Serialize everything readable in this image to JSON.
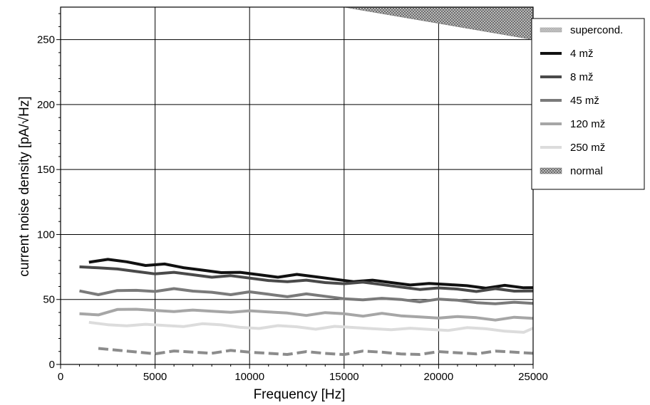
{
  "chart_data": {
    "type": "line",
    "title": "",
    "xlabel": "Frequency [Hz]",
    "ylabel": "current noise density [pA/√Hz]",
    "xlim": [
      0,
      25000
    ],
    "ylim": [
      0,
      275
    ],
    "xticks": [
      0,
      5000,
      10000,
      15000,
      20000,
      25000
    ],
    "yticks": [
      0,
      50,
      100,
      150,
      200,
      250
    ],
    "xtick_labels": [
      "0",
      "5000",
      "10000",
      "15000",
      "20000",
      "25000"
    ],
    "ytick_labels": [
      "0",
      "50",
      "100",
      "150",
      "200",
      "250"
    ],
    "grid": true,
    "legend_position": "top-right",
    "series": [
      {
        "name": "supercond.",
        "style": "hatched-dashed",
        "color": "#8c8c8c",
        "x": [
          2000,
          3000,
          4000,
          5000,
          6000,
          7000,
          8000,
          9000,
          10000,
          11000,
          12000,
          13000,
          14000,
          15000,
          16000,
          17000,
          18000,
          19000,
          20000,
          21000,
          22000,
          23000,
          24000,
          25000
        ],
        "y": [
          11,
          10.5,
          10,
          9.5,
          9.5,
          9.5,
          9.5,
          9.5,
          9,
          9,
          9,
          9,
          8.5,
          8.5,
          9,
          9,
          8.5,
          9,
          9,
          9,
          9,
          9,
          9,
          9
        ]
      },
      {
        "name": "4  mž",
        "style": "solid",
        "color": "#111111",
        "x": [
          1500,
          2500,
          3500,
          4500,
          5500,
          6500,
          7500,
          8500,
          9500,
          10500,
          11500,
          12500,
          13500,
          14500,
          15500,
          16500,
          17500,
          18500,
          19500,
          20500,
          21500,
          22500,
          23500,
          24500,
          25000
        ],
        "y": [
          80,
          80,
          79,
          77,
          76,
          74,
          73,
          72,
          70,
          69,
          68,
          68,
          67,
          66,
          65,
          64,
          63,
          62,
          61,
          61,
          61,
          60,
          60,
          59,
          60
        ]
      },
      {
        "name": "8 mž",
        "style": "solid",
        "color": "#4a4a4a",
        "x": [
          1000,
          2000,
          3000,
          4000,
          5000,
          6000,
          7000,
          8000,
          9000,
          10000,
          11000,
          12000,
          13000,
          14000,
          15000,
          16000,
          17000,
          18000,
          19000,
          20000,
          21000,
          22000,
          23000,
          24000,
          25000
        ],
        "y": [
          76,
          73,
          73,
          72,
          71,
          70,
          69,
          68,
          67,
          66,
          65,
          65,
          64,
          63,
          63,
          62,
          61,
          60,
          59,
          58,
          58,
          57,
          57,
          56,
          57
        ]
      },
      {
        "name": "45 mž",
        "style": "solid",
        "color": "#7a7a7a",
        "x": [
          1000,
          2000,
          3000,
          4000,
          5000,
          6000,
          7000,
          8000,
          9000,
          10000,
          11000,
          12000,
          13000,
          14000,
          15000,
          16000,
          17000,
          18000,
          19000,
          20000,
          21000,
          22000,
          23000,
          24000,
          25000
        ],
        "y": [
          57,
          55,
          56,
          57,
          57,
          57,
          56,
          56,
          55,
          55,
          54,
          53,
          53,
          52,
          51,
          51,
          50,
          50,
          49,
          49,
          49,
          48,
          48,
          47,
          47
        ]
      },
      {
        "name": "120 mž",
        "style": "solid",
        "color": "#a6a6a6",
        "x": [
          1000,
          2000,
          3000,
          4000,
          5000,
          6000,
          7000,
          8000,
          9000,
          10000,
          11000,
          12000,
          13000,
          14000,
          15000,
          16000,
          17000,
          18000,
          19000,
          20000,
          21000,
          22000,
          23000,
          24000,
          25000
        ],
        "y": [
          39,
          39,
          41,
          42,
          42,
          42,
          41,
          41,
          41,
          40,
          40,
          40,
          39,
          39,
          39,
          38,
          38,
          37,
          37,
          37,
          36,
          36,
          35,
          35,
          35
        ]
      },
      {
        "name": "250 mž",
        "style": "solid",
        "color": "#dcdcdc",
        "x": [
          1500,
          2500,
          3500,
          4500,
          5500,
          6500,
          7500,
          8500,
          9500,
          10500,
          11500,
          12500,
          13500,
          14500,
          15500,
          16500,
          17500,
          18500,
          19500,
          20500,
          21500,
          22500,
          23500,
          24500,
          25000
        ],
        "y": [
          32,
          31,
          31,
          30,
          30,
          30,
          30,
          30,
          29,
          29,
          29,
          29,
          28,
          28,
          28,
          28,
          28,
          27,
          27,
          27,
          27,
          27,
          26,
          26,
          27
        ]
      },
      {
        "name": "normal",
        "style": "hatched-area",
        "color": "#8c8c8c",
        "x": [
          15000,
          25000
        ],
        "y": [
          275,
          250
        ]
      }
    ]
  }
}
